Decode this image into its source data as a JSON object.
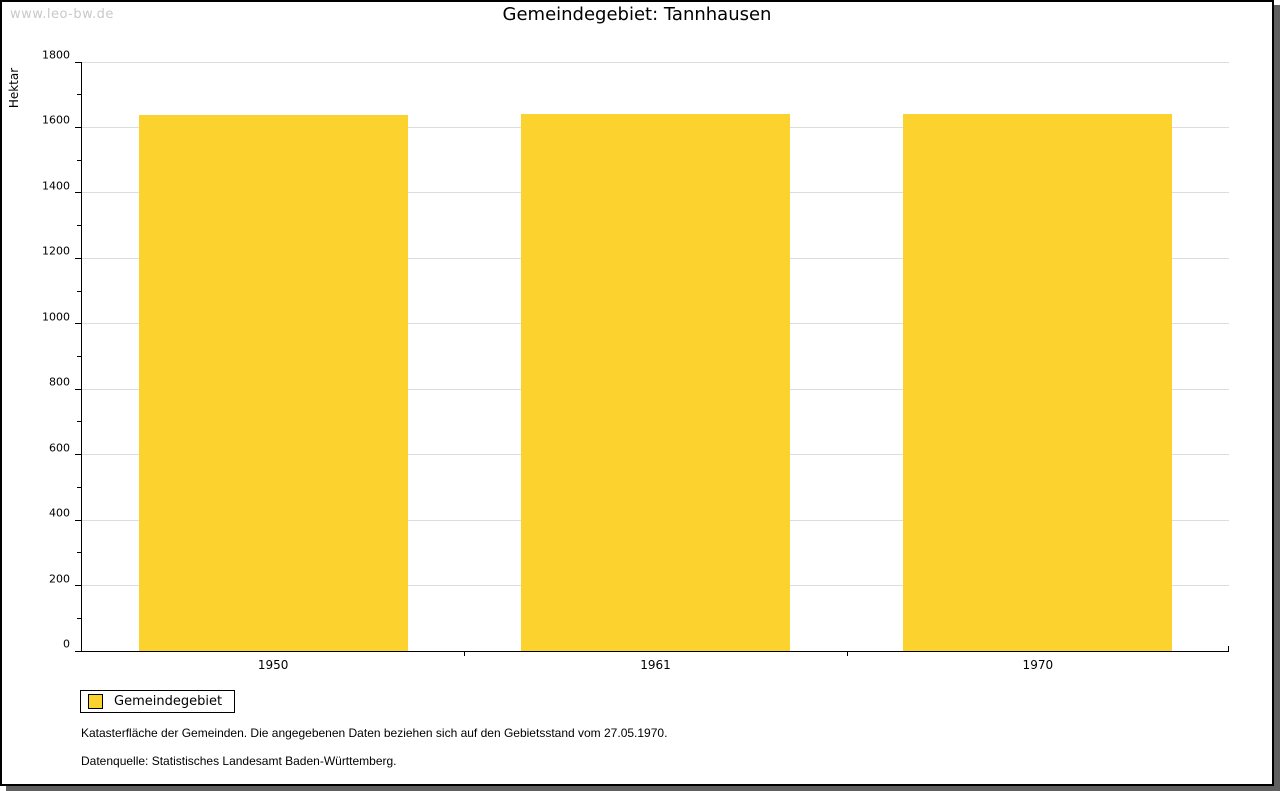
{
  "watermark": "www.leo-bw.de",
  "chart_data": {
    "type": "bar",
    "title": "Gemeindegebiet: Tannhausen",
    "xlabel": "",
    "ylabel": "Hektar",
    "categories": [
      "1950",
      "1961",
      "1970"
    ],
    "series": [
      {
        "name": "Gemeindegebiet",
        "values": [
          1637,
          1640,
          1642
        ]
      }
    ],
    "ylim": [
      0,
      1800
    ],
    "y_major_step": 200,
    "y_minor_step": 100,
    "grid": true,
    "legend_position": "bottom-left"
  },
  "legend": {
    "label": "Gemeindegebiet"
  },
  "footnotes": [
    "Katasterfläche der Gemeinden. Die angegebenen Daten beziehen sich auf den Gebietsstand vom 27.05.1970.",
    "Datenquelle: Statistisches Landesamt Baden-Württemberg."
  ],
  "colors": {
    "bar": "#FBD22E",
    "grid": "#DDDDDD",
    "axis": "#000000",
    "watermark": "#C9C9C9",
    "shadow": "#606060"
  }
}
